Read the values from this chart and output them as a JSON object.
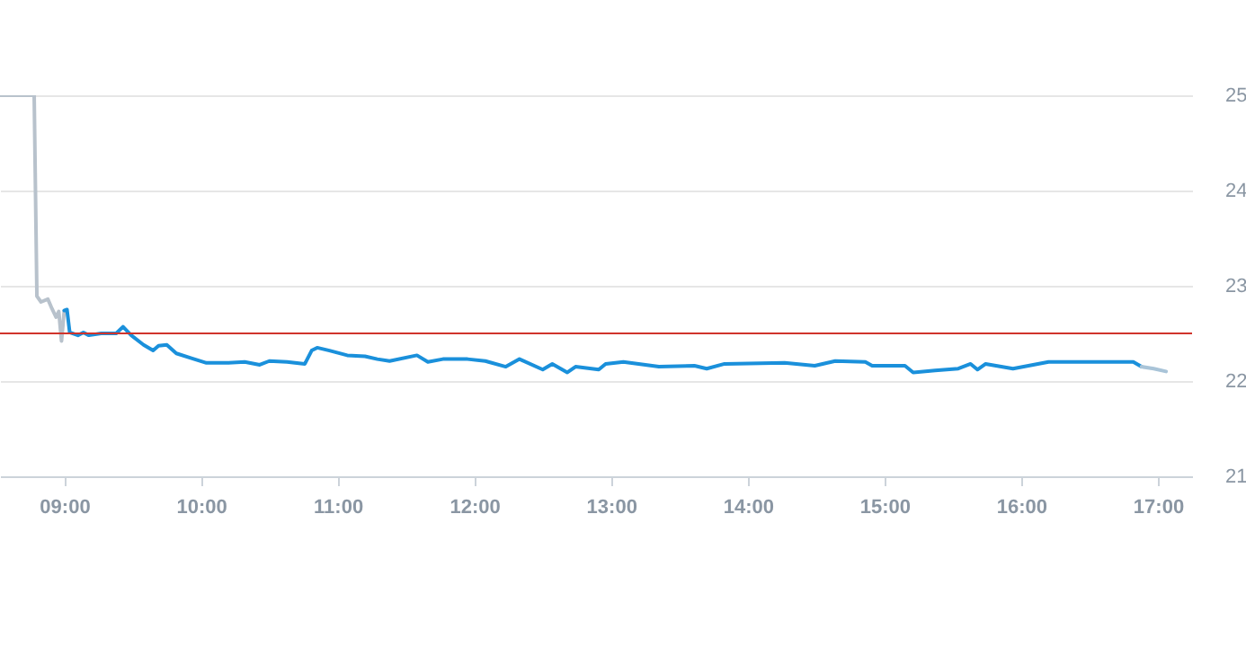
{
  "chart_data": {
    "type": "line",
    "xlim": [
      8.53,
      17.25
    ],
    "ylim": [
      21,
      25
    ],
    "xticks": [
      {
        "value": 9,
        "label": "09:00"
      },
      {
        "value": 10,
        "label": "10:00"
      },
      {
        "value": 11,
        "label": "11:00"
      },
      {
        "value": 12,
        "label": "12:00"
      },
      {
        "value": 13,
        "label": "13:00"
      },
      {
        "value": 14,
        "label": "14:00"
      },
      {
        "value": 15,
        "label": "15:00"
      },
      {
        "value": 16,
        "label": "16:00"
      },
      {
        "value": 17,
        "label": "17:00"
      }
    ],
    "yticks": [
      21,
      22,
      23,
      24,
      25
    ],
    "grid": "y",
    "marker": "none",
    "line_style": "solid",
    "ref_lines": [
      {
        "axis": "y",
        "value": 22.5,
        "color": "#d0342c"
      }
    ],
    "series": [
      {
        "color": "#b8c2cc",
        "x": [
          8.53,
          8.78,
          8.8,
          8.83,
          8.88,
          8.91,
          8.94,
          8.96,
          8.98,
          9.0
        ],
        "values": [
          25,
          25,
          22.89,
          22.83,
          22.86,
          22.76,
          22.67,
          22.73,
          22.42,
          22.74
        ]
      },
      {
        "color": "#1a90db",
        "x": [
          9.0,
          9.02,
          9.04,
          9.1,
          9.14,
          9.18,
          9.27,
          9.38,
          9.43,
          9.49,
          9.58,
          9.65,
          9.69,
          9.75,
          9.82,
          9.93,
          10.04,
          10.19,
          10.32,
          10.43,
          10.5,
          10.63,
          10.76,
          10.81,
          10.85,
          10.94,
          11.07,
          11.2,
          11.29,
          11.38,
          11.58,
          11.66,
          11.77,
          11.95,
          12.08,
          12.23,
          12.33,
          12.5,
          12.57,
          12.68,
          12.74,
          12.91,
          12.96,
          13.09,
          13.35,
          13.61,
          13.7,
          13.83,
          14.27,
          14.49,
          14.64,
          14.86,
          14.91,
          15.15,
          15.21,
          15.37,
          15.54,
          15.63,
          15.68,
          15.74,
          15.94,
          16.2,
          16.38,
          16.6,
          16.82,
          16.88
        ],
        "values": [
          22.74,
          22.75,
          22.51,
          22.48,
          22.51,
          22.48,
          22.5,
          22.5,
          22.57,
          22.48,
          22.38,
          22.32,
          22.37,
          22.38,
          22.29,
          22.24,
          22.19,
          22.19,
          22.2,
          22.17,
          22.21,
          22.2,
          22.18,
          22.32,
          22.35,
          22.32,
          22.27,
          22.26,
          22.23,
          22.21,
          22.27,
          22.2,
          22.23,
          22.23,
          22.21,
          22.15,
          22.23,
          22.12,
          22.18,
          22.09,
          22.15,
          22.12,
          22.18,
          22.2,
          22.15,
          22.16,
          22.13,
          22.18,
          22.19,
          22.16,
          22.21,
          22.2,
          22.16,
          22.16,
          22.09,
          22.11,
          22.13,
          22.18,
          22.12,
          22.18,
          22.13,
          22.2,
          22.2,
          22.2,
          22.2,
          22.15
        ]
      },
      {
        "color": "#a9c4d8",
        "x": [
          16.88,
          16.97,
          17.06
        ],
        "values": [
          22.15,
          22.13,
          22.1
        ]
      }
    ]
  }
}
